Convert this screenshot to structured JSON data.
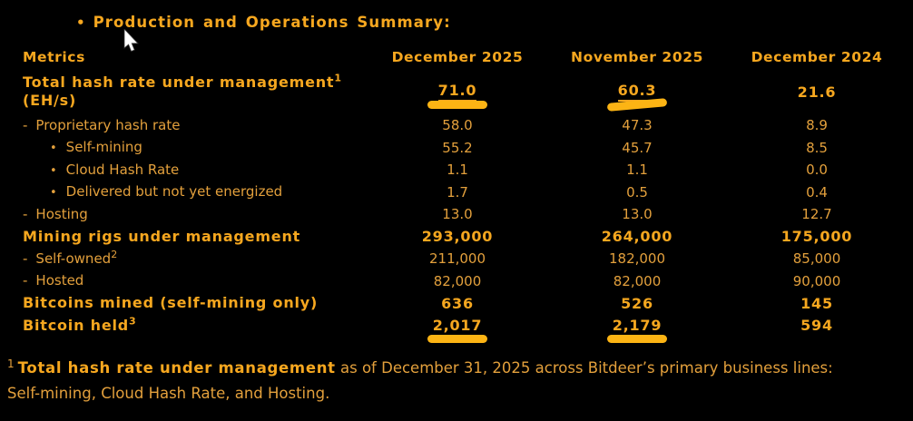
{
  "title": {
    "bullet": "•",
    "text": "Production and Operations Summary:"
  },
  "table": {
    "header": [
      "Metrics",
      "December 2025",
      "November 2025",
      "December 2024"
    ],
    "rows": [
      {
        "label": "Total hash rate under management",
        "sup": "1",
        "label2": "(EH/s)",
        "prefix": "",
        "indent": 0,
        "bold": true,
        "values": [
          "71.0",
          "60.3",
          "21.6"
        ],
        "values_bold": true,
        "underline": [
          true,
          true,
          false
        ],
        "marker": [
          true,
          true,
          false
        ],
        "marker_tilt": [
          0,
          -5,
          0
        ],
        "tall": true
      },
      {
        "label": "Proprietary hash rate",
        "prefix": "-",
        "indent": 0,
        "bold": false,
        "values": [
          "58.0",
          "47.3",
          "8.9"
        ]
      },
      {
        "label": "Self-mining",
        "prefix": "•",
        "indent": 1,
        "bold": false,
        "values": [
          "55.2",
          "45.7",
          "8.5"
        ]
      },
      {
        "label": "Cloud Hash Rate",
        "prefix": "•",
        "indent": 1,
        "bold": false,
        "values": [
          "1.1",
          "1.1",
          "0.0"
        ]
      },
      {
        "label": "Delivered but not yet energized",
        "prefix": "•",
        "indent": 1,
        "bold": false,
        "values": [
          "1.7",
          "0.5",
          "0.4"
        ]
      },
      {
        "label": "Hosting",
        "prefix": "-",
        "indent": 0,
        "bold": false,
        "values": [
          "13.0",
          "13.0",
          "12.7"
        ]
      },
      {
        "label": "Mining rigs under management",
        "prefix": "",
        "indent": 0,
        "bold": true,
        "values": [
          "293,000",
          "264,000",
          "175,000"
        ],
        "values_bold": true
      },
      {
        "label": "Self-owned",
        "sup": "2",
        "prefix": "-",
        "indent": 0,
        "bold": false,
        "values": [
          "211,000",
          "182,000",
          "85,000"
        ]
      },
      {
        "label": "Hosted",
        "prefix": "-",
        "indent": 0,
        "bold": false,
        "values": [
          "82,000",
          "82,000",
          "90,000"
        ]
      },
      {
        "label": "Bitcoins mined (self-mining only)",
        "prefix": "",
        "indent": 0,
        "bold": true,
        "values": [
          "636",
          "526",
          "145"
        ],
        "values_bold": true
      },
      {
        "label": "Bitcoin held",
        "sup": "3",
        "prefix": "",
        "indent": 0,
        "bold": true,
        "values": [
          "2,017",
          "2,179",
          "594"
        ],
        "values_bold": true,
        "marker": [
          true,
          true,
          false
        ],
        "marker_tilt": [
          0,
          0,
          0
        ]
      }
    ]
  },
  "footnote": {
    "sup": "1",
    "bold": "Total hash rate under management",
    "rest": " as of December 31, 2025 across Bitdeer’s primary business lines:",
    "line2": "Self-mining, Cloud Hash Rate, and Hosting."
  },
  "colors": {
    "background": "#000000",
    "text": "#e3a03c",
    "bold_text": "#f6a71f",
    "marker": "#fcb414"
  },
  "cursor": "arrow-pointer"
}
